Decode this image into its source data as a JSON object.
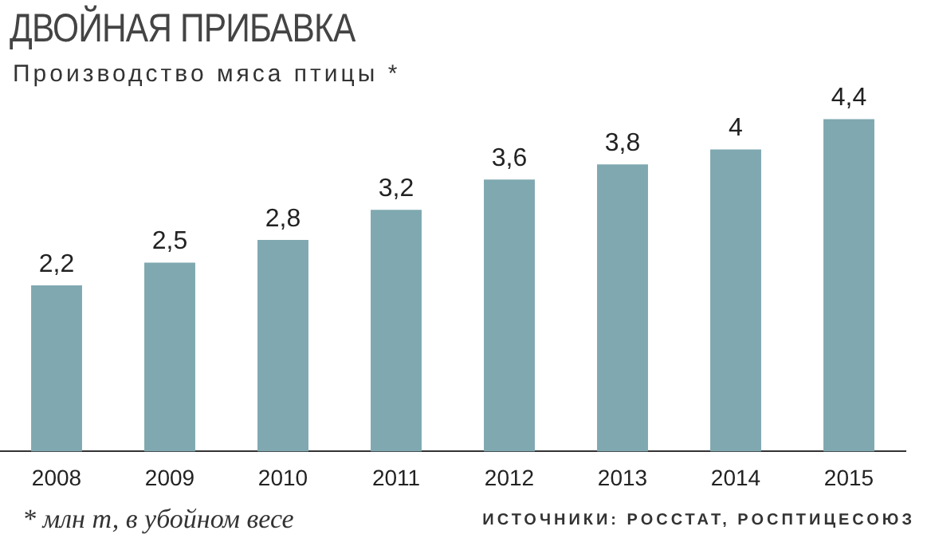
{
  "chart_data": {
    "type": "bar",
    "title": "ДВОЙНАЯ ПРИБАВКА",
    "subtitle": "Производство мяса птицы *",
    "categories": [
      "2008",
      "2009",
      "2010",
      "2011",
      "2012",
      "2013",
      "2014",
      "2015"
    ],
    "values": [
      2.2,
      2.5,
      2.8,
      3.2,
      3.6,
      3.8,
      4,
      4.4
    ],
    "value_labels": [
      "2,2",
      "2,5",
      "2,8",
      "3,2",
      "3,6",
      "3,8",
      "4",
      "4,4"
    ],
    "color": "#7fa8b0",
    "grid": false,
    "legend": false,
    "tick_labels": "x",
    "annotations": [
      "* млн т, в убойном весе",
      "ИСТОЧНИКИ: РОССТАТ, РОСПТИЦЕСОЮЗ"
    ]
  }
}
